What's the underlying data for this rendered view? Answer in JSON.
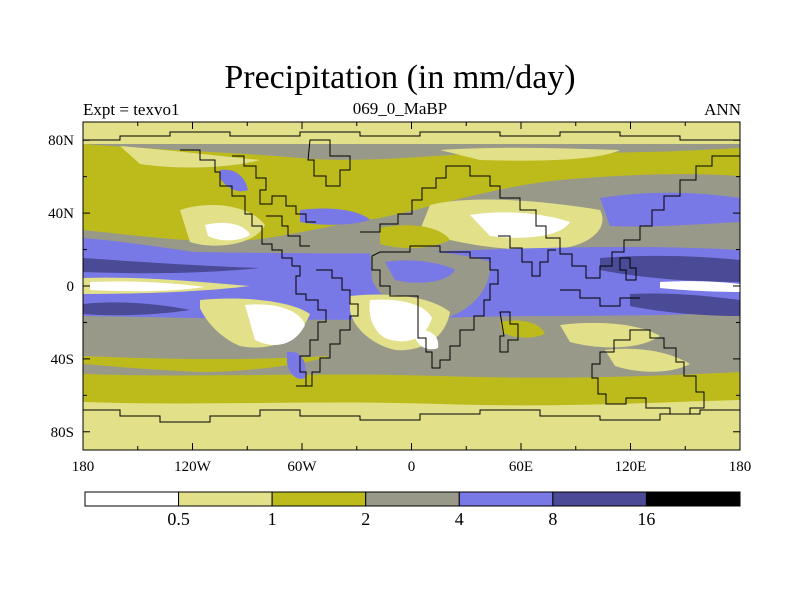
{
  "title": "Precipitation (in mm/day)",
  "subtitle_left": "Expt = texvo1",
  "subtitle_center": "069_0_MaBP",
  "subtitle_right": "ANN",
  "lon_ticks": [
    {
      "value": -180,
      "label": "180"
    },
    {
      "value": -120,
      "label": "120W"
    },
    {
      "value": -60,
      "label": "60W"
    },
    {
      "value": 0,
      "label": "0"
    },
    {
      "value": 60,
      "label": "60E"
    },
    {
      "value": 120,
      "label": "120E"
    },
    {
      "value": 180,
      "label": "180"
    }
  ],
  "lat_ticks": [
    {
      "value": 80,
      "label": "80N"
    },
    {
      "value": 40,
      "label": "40N"
    },
    {
      "value": 0,
      "label": "0"
    },
    {
      "value": -40,
      "label": "40S"
    },
    {
      "value": -80,
      "label": "80S"
    }
  ],
  "colorbar": {
    "colors": [
      "#ffffff",
      "#e3e08a",
      "#bdbb1c",
      "#99998a",
      "#7878e6",
      "#4a4a96",
      "#000000"
    ],
    "levels": [
      "0.5",
      "1",
      "2",
      "4",
      "8",
      "16"
    ]
  },
  "palette": {
    "white": "#ffffff",
    "light": "#e3e08a",
    "olive": "#bdbb1c",
    "gray": "#99998a",
    "blue": "#7878e6",
    "navy": "#4a4a96",
    "coast": "#000000"
  }
}
